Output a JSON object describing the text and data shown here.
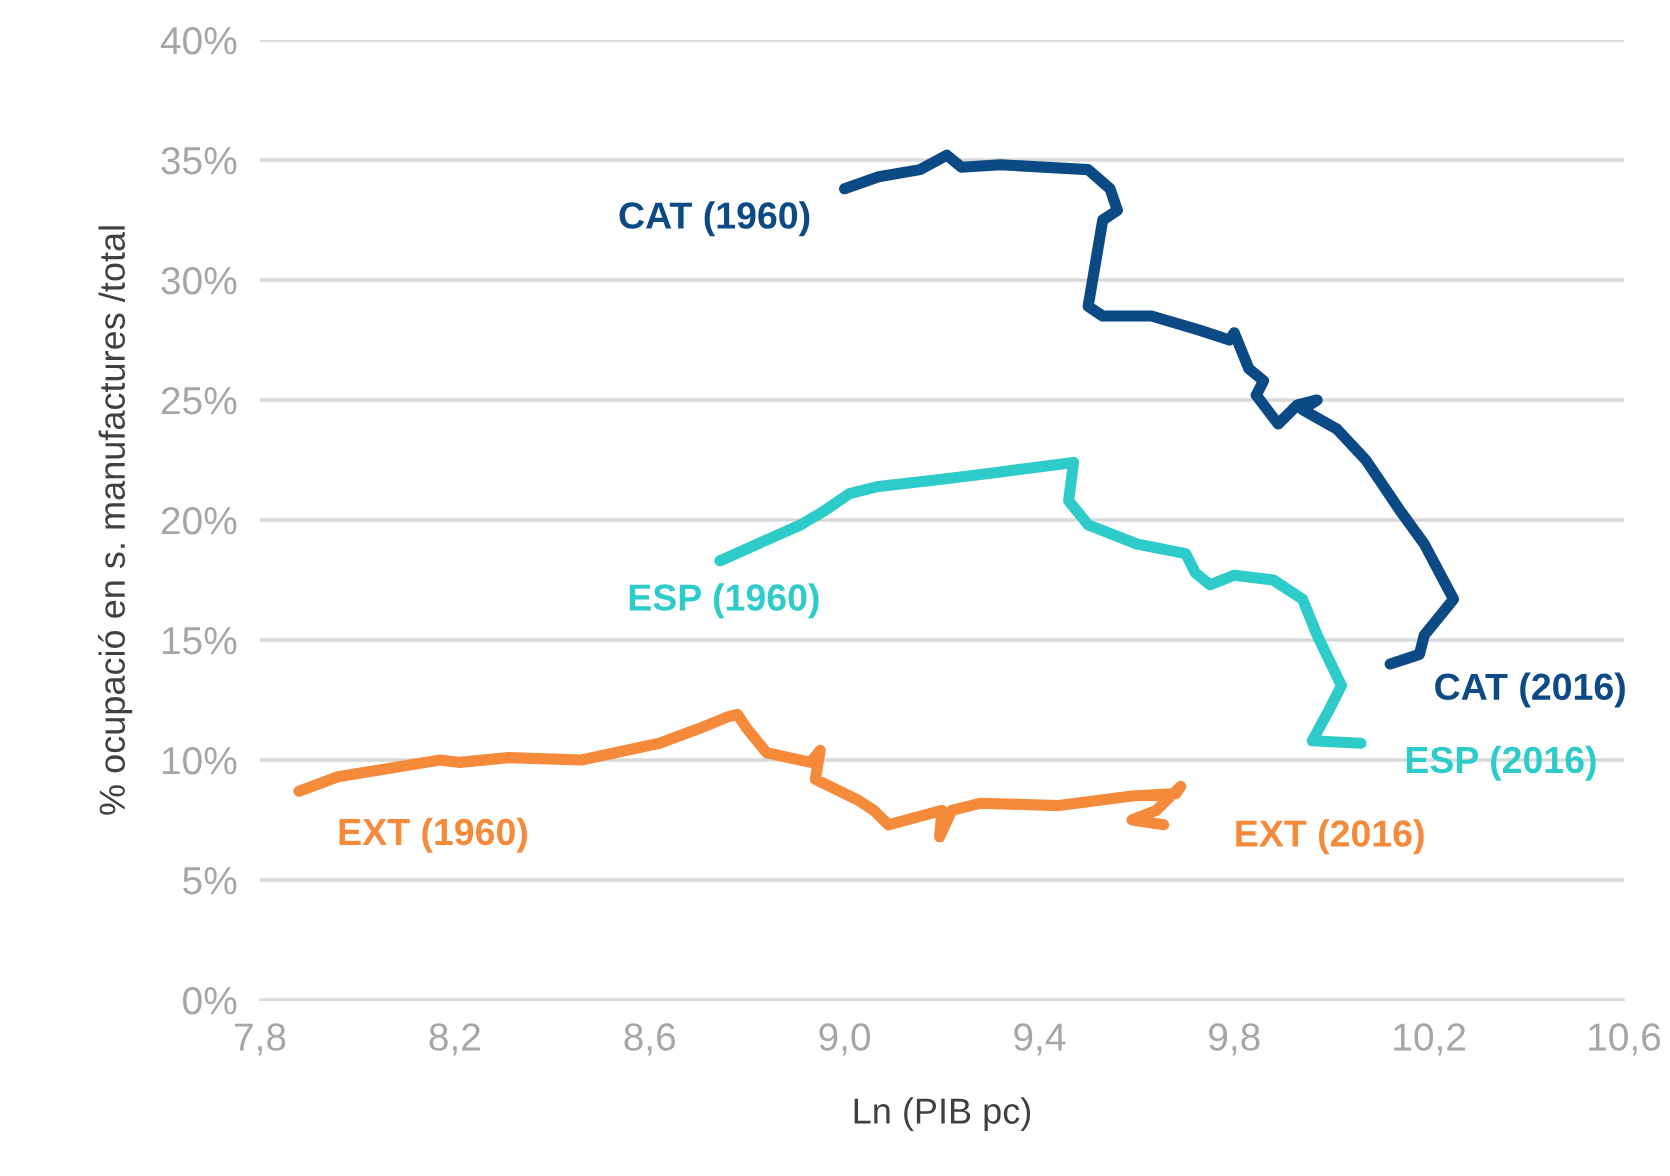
{
  "chart_data": {
    "type": "line",
    "xlabel": "Ln (PIB pc)",
    "ylabel": "% ocupació en s. manufactures /total",
    "xlim": [
      7.8,
      10.6
    ],
    "xticks": [
      {
        "value": 7.8,
        "label": "7,8"
      },
      {
        "value": 8.2,
        "label": "8,2"
      },
      {
        "value": 8.6,
        "label": "8,6"
      },
      {
        "value": 9.0,
        "label": "9,0"
      },
      {
        "value": 9.4,
        "label": "9,4"
      },
      {
        "value": 9.8,
        "label": "9,8"
      },
      {
        "value": 10.2,
        "label": "10,2"
      },
      {
        "value": 10.6,
        "label": "10,6"
      }
    ],
    "ylim": [
      0,
      40
    ],
    "yticks": [
      {
        "value": 0,
        "label": "0%"
      },
      {
        "value": 5,
        "label": "5%"
      },
      {
        "value": 10,
        "label": "10%"
      },
      {
        "value": 15,
        "label": "15%"
      },
      {
        "value": 20,
        "label": "20%"
      },
      {
        "value": 25,
        "label": "25%"
      },
      {
        "value": 30,
        "label": "30%"
      },
      {
        "value": 35,
        "label": "35%"
      },
      {
        "value": 40,
        "label": "40%"
      }
    ],
    "grid": "y",
    "marker": "none",
    "line_style": "solid",
    "legend": false,
    "series": [
      {
        "color": "#0b4a85",
        "x": [
          9.0,
          9.07,
          9.155,
          9.21,
          9.24,
          9.32,
          9.5,
          9.545,
          9.56,
          9.53,
          9.5,
          9.53,
          9.63,
          9.73,
          9.79,
          9.8,
          9.83,
          9.86,
          9.845,
          9.89,
          9.93,
          9.97,
          9.94,
          10.01,
          10.07,
          10.14,
          10.19,
          10.25,
          10.19,
          10.18,
          10.12
        ],
        "values": [
          33.8,
          34.3,
          34.6,
          35.2,
          34.7,
          34.8,
          34.6,
          33.8,
          32.9,
          32.5,
          28.9,
          28.5,
          28.5,
          27.9,
          27.5,
          27.8,
          26.3,
          25.8,
          25.2,
          24.0,
          24.8,
          25.0,
          24.6,
          23.8,
          22.5,
          20.4,
          19.0,
          16.7,
          15.2,
          14.4,
          14.0
        ]
      },
      {
        "color": "#2ecbcb",
        "x": [
          8.744,
          8.91,
          8.96,
          9.01,
          9.07,
          9.2,
          9.32,
          9.47,
          9.46,
          9.5,
          9.6,
          9.7,
          9.72,
          9.75,
          9.8,
          9.88,
          9.94,
          9.97,
          10.02,
          9.995,
          9.96,
          10.06
        ],
        "values": [
          18.3,
          19.8,
          20.4,
          21.1,
          21.4,
          21.7,
          22.0,
          22.4,
          20.8,
          19.8,
          19.0,
          18.6,
          17.8,
          17.3,
          17.7,
          17.5,
          16.7,
          15.2,
          13.1,
          12.1,
          10.8,
          10.7
        ]
      },
      {
        "color": "#f58a3b",
        "x": [
          7.88,
          7.96,
          8.17,
          8.21,
          8.31,
          8.46,
          8.62,
          8.7,
          8.76,
          8.78,
          8.8,
          8.84,
          8.93,
          8.95,
          8.94,
          9.03,
          9.06,
          9.09,
          9.2,
          9.195,
          9.22,
          9.28,
          9.44,
          9.59,
          9.68,
          9.69,
          9.64,
          9.59,
          9.655
        ],
        "values": [
          8.7,
          9.3,
          10.0,
          9.9,
          10.1,
          10.0,
          10.7,
          11.3,
          11.8,
          11.9,
          11.3,
          10.3,
          9.9,
          10.4,
          9.2,
          8.3,
          7.9,
          7.3,
          7.9,
          6.8,
          7.9,
          8.2,
          8.1,
          8.5,
          8.6,
          8.9,
          7.9,
          7.5,
          7.3
        ]
      }
    ],
    "annotations": [
      {
        "text": "CAT (1960)",
        "x": 9.0,
        "y": 33.8
      },
      {
        "text": "CAT (2016)",
        "x": 10.12,
        "y": 14.0
      },
      {
        "text": "ESP (1960)",
        "x": 8.744,
        "y": 18.3
      },
      {
        "text": "ESP (2016)",
        "x": 10.06,
        "y": 10.7
      },
      {
        "text": "EXT (1960)",
        "x": 7.88,
        "y": 8.7
      },
      {
        "text": "EXT (2016)",
        "x": 9.655,
        "y": 7.3
      }
    ]
  }
}
